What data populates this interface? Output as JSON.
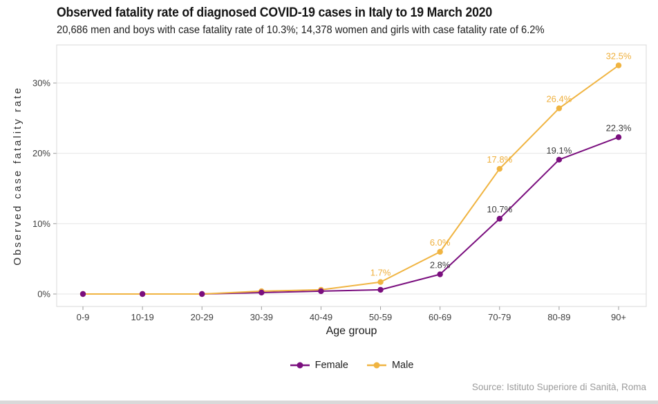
{
  "header": {
    "title": "Observed fatality rate of diagnosed COVID-19 cases in Italy to 19 March 2020",
    "subtitle": "20,686 men and boys with case fatality rate of 10.3%; 14,378 women and girls with case fatality rate of 6.2%"
  },
  "chart_data": {
    "type": "line",
    "categories": [
      "0-9",
      "10-19",
      "20-29",
      "30-39",
      "40-49",
      "50-59",
      "60-69",
      "70-79",
      "80-89",
      "90+"
    ],
    "series": [
      {
        "name": "Female",
        "color": "#7A0E7E",
        "label_color": "#3A3A3A",
        "values": [
          0.0,
          0.0,
          0.0,
          0.2,
          0.4,
          0.6,
          2.8,
          10.7,
          19.1,
          22.3
        ],
        "labels": [
          null,
          null,
          null,
          null,
          null,
          null,
          "2.8%",
          "10.7%",
          "19.1%",
          "22.3%"
        ]
      },
      {
        "name": "Male",
        "color": "#F0B441",
        "label_color": "#EFAF3B",
        "values": [
          0.0,
          0.0,
          0.0,
          0.4,
          0.6,
          1.7,
          6.0,
          17.8,
          26.4,
          32.5
        ],
        "labels": [
          null,
          null,
          null,
          null,
          null,
          "1.7%",
          "6.0%",
          "17.8%",
          "26.4%",
          "32.5%"
        ]
      }
    ],
    "xlabel": "Age group",
    "ylabel": "Observed case fatality rate",
    "yticks": [
      "0%",
      "10%",
      "20%",
      "30%"
    ],
    "ytick_values": [
      0,
      10,
      20,
      30
    ],
    "ylim": [
      -1.8,
      35.4
    ],
    "grid": "horizontal",
    "legend_position": "bottom",
    "grid_color": "#e6e6e6",
    "border_color": "#d9d9d9",
    "tick_color": "#9a9a9a"
  },
  "footer": {
    "source": "Source: Istituto Superiore di Sanità, Roma"
  }
}
